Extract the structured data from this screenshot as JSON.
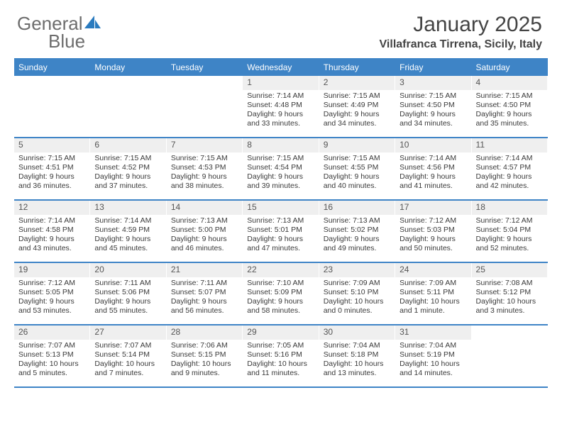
{
  "brand": {
    "word1": "General",
    "word2": "Blue"
  },
  "title": "January 2025",
  "location": "Villafranca Tirrena, Sicily, Italy",
  "colors": {
    "brand_blue": "#2a7bbf",
    "header_blue": "#3e84c6",
    "cell_gray": "#efefef",
    "text": "#3a3a3a"
  },
  "dayNames": [
    "Sunday",
    "Monday",
    "Tuesday",
    "Wednesday",
    "Thursday",
    "Friday",
    "Saturday"
  ],
  "weeks": [
    [
      null,
      null,
      null,
      {
        "n": "1",
        "sunrise": "7:14 AM",
        "sunset": "4:48 PM",
        "daylight": "9 hours and 33 minutes."
      },
      {
        "n": "2",
        "sunrise": "7:15 AM",
        "sunset": "4:49 PM",
        "daylight": "9 hours and 34 minutes."
      },
      {
        "n": "3",
        "sunrise": "7:15 AM",
        "sunset": "4:50 PM",
        "daylight": "9 hours and 34 minutes."
      },
      {
        "n": "4",
        "sunrise": "7:15 AM",
        "sunset": "4:50 PM",
        "daylight": "9 hours and 35 minutes."
      }
    ],
    [
      {
        "n": "5",
        "sunrise": "7:15 AM",
        "sunset": "4:51 PM",
        "daylight": "9 hours and 36 minutes."
      },
      {
        "n": "6",
        "sunrise": "7:15 AM",
        "sunset": "4:52 PM",
        "daylight": "9 hours and 37 minutes."
      },
      {
        "n": "7",
        "sunrise": "7:15 AM",
        "sunset": "4:53 PM",
        "daylight": "9 hours and 38 minutes."
      },
      {
        "n": "8",
        "sunrise": "7:15 AM",
        "sunset": "4:54 PM",
        "daylight": "9 hours and 39 minutes."
      },
      {
        "n": "9",
        "sunrise": "7:15 AM",
        "sunset": "4:55 PM",
        "daylight": "9 hours and 40 minutes."
      },
      {
        "n": "10",
        "sunrise": "7:14 AM",
        "sunset": "4:56 PM",
        "daylight": "9 hours and 41 minutes."
      },
      {
        "n": "11",
        "sunrise": "7:14 AM",
        "sunset": "4:57 PM",
        "daylight": "9 hours and 42 minutes."
      }
    ],
    [
      {
        "n": "12",
        "sunrise": "7:14 AM",
        "sunset": "4:58 PM",
        "daylight": "9 hours and 43 minutes."
      },
      {
        "n": "13",
        "sunrise": "7:14 AM",
        "sunset": "4:59 PM",
        "daylight": "9 hours and 45 minutes."
      },
      {
        "n": "14",
        "sunrise": "7:13 AM",
        "sunset": "5:00 PM",
        "daylight": "9 hours and 46 minutes."
      },
      {
        "n": "15",
        "sunrise": "7:13 AM",
        "sunset": "5:01 PM",
        "daylight": "9 hours and 47 minutes."
      },
      {
        "n": "16",
        "sunrise": "7:13 AM",
        "sunset": "5:02 PM",
        "daylight": "9 hours and 49 minutes."
      },
      {
        "n": "17",
        "sunrise": "7:12 AM",
        "sunset": "5:03 PM",
        "daylight": "9 hours and 50 minutes."
      },
      {
        "n": "18",
        "sunrise": "7:12 AM",
        "sunset": "5:04 PM",
        "daylight": "9 hours and 52 minutes."
      }
    ],
    [
      {
        "n": "19",
        "sunrise": "7:12 AM",
        "sunset": "5:05 PM",
        "daylight": "9 hours and 53 minutes."
      },
      {
        "n": "20",
        "sunrise": "7:11 AM",
        "sunset": "5:06 PM",
        "daylight": "9 hours and 55 minutes."
      },
      {
        "n": "21",
        "sunrise": "7:11 AM",
        "sunset": "5:07 PM",
        "daylight": "9 hours and 56 minutes."
      },
      {
        "n": "22",
        "sunrise": "7:10 AM",
        "sunset": "5:09 PM",
        "daylight": "9 hours and 58 minutes."
      },
      {
        "n": "23",
        "sunrise": "7:09 AM",
        "sunset": "5:10 PM",
        "daylight": "10 hours and 0 minutes."
      },
      {
        "n": "24",
        "sunrise": "7:09 AM",
        "sunset": "5:11 PM",
        "daylight": "10 hours and 1 minute."
      },
      {
        "n": "25",
        "sunrise": "7:08 AM",
        "sunset": "5:12 PM",
        "daylight": "10 hours and 3 minutes."
      }
    ],
    [
      {
        "n": "26",
        "sunrise": "7:07 AM",
        "sunset": "5:13 PM",
        "daylight": "10 hours and 5 minutes."
      },
      {
        "n": "27",
        "sunrise": "7:07 AM",
        "sunset": "5:14 PM",
        "daylight": "10 hours and 7 minutes."
      },
      {
        "n": "28",
        "sunrise": "7:06 AM",
        "sunset": "5:15 PM",
        "daylight": "10 hours and 9 minutes."
      },
      {
        "n": "29",
        "sunrise": "7:05 AM",
        "sunset": "5:16 PM",
        "daylight": "10 hours and 11 minutes."
      },
      {
        "n": "30",
        "sunrise": "7:04 AM",
        "sunset": "5:18 PM",
        "daylight": "10 hours and 13 minutes."
      },
      {
        "n": "31",
        "sunrise": "7:04 AM",
        "sunset": "5:19 PM",
        "daylight": "10 hours and 14 minutes."
      },
      null
    ]
  ],
  "labels": {
    "sunrise": "Sunrise: ",
    "sunset": "Sunset: ",
    "daylight": "Daylight: "
  }
}
